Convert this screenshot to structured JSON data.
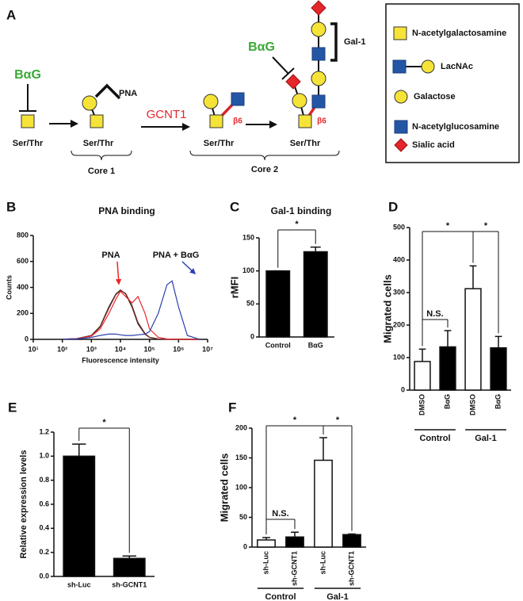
{
  "diagram": {
    "panel": "A",
    "inhibitor_1": "BαG",
    "inhibitor_2": "BαG",
    "pna": "PNA",
    "enzyme": "GCNT1",
    "linkage_1": "β6",
    "linkage_2": "β6",
    "site_1": "Ser/Thr",
    "site_2": "Ser/Thr",
    "site_3": "Ser/Thr",
    "site_4": "Ser/Thr",
    "core_1": "Core 1",
    "core_2": "Core 2",
    "gal1": "Gal-1",
    "legend": [
      "N-acetylgalactosamine",
      "LacNAc",
      "Galactose",
      "N-acetylglucosamine",
      "Sialic acid"
    ]
  },
  "chart_data": [
    {
      "panel": "B",
      "type": "line",
      "title": "PNA binding",
      "x_label": "Fluorescence intensity",
      "y_label": "Counts",
      "log_x": true,
      "x": [
        100,
        300,
        1000,
        2000,
        4000,
        7000,
        10000,
        15000,
        25000,
        40000,
        70000,
        100000,
        200000,
        400000,
        600000,
        1000000,
        2000000,
        5000000
      ],
      "xlim": [
        10,
        10000000
      ],
      "xticks": [
        {
          "value": 10,
          "label": "10¹"
        },
        {
          "value": 100,
          "label": "10²"
        },
        {
          "value": 1000,
          "label": "10³"
        },
        {
          "value": 10000,
          "label": "10⁴"
        },
        {
          "value": 100000,
          "label": "10⁵"
        },
        {
          "value": 1000000,
          "label": "10⁶"
        },
        {
          "value": 10000000,
          "label": "10⁷"
        }
      ],
      "ylim": [
        0,
        800
      ],
      "yticks": [
        0,
        200,
        400,
        600,
        800
      ],
      "series": [
        {
          "color": "#111111",
          "values": [
            2,
            5,
            30,
            100,
            250,
            350,
            380,
            350,
            250,
            120,
            40,
            15,
            3,
            1,
            0,
            0,
            0,
            0
          ]
        },
        {
          "color": "#7a2a2a",
          "values": [
            2,
            5,
            28,
            95,
            240,
            345,
            375,
            355,
            260,
            130,
            45,
            15,
            3,
            1,
            0,
            0,
            0,
            0
          ]
        },
        {
          "name": "PNA",
          "color": "#e8262a",
          "values": [
            2,
            5,
            25,
            80,
            200,
            310,
            370,
            330,
            280,
            330,
            200,
            80,
            15,
            3,
            1,
            0,
            0,
            0
          ]
        },
        {
          "name": "PNA + BαG",
          "color": "#2b3fb0",
          "values": [
            1,
            3,
            15,
            30,
            40,
            40,
            35,
            30,
            30,
            35,
            40,
            60,
            200,
            420,
            450,
            250,
            30,
            2
          ]
        }
      ]
    },
    {
      "panel": "C",
      "type": "bar",
      "title": "Gal-1 binding",
      "y_label": "rMFI",
      "categories": [
        "Control",
        "BαG"
      ],
      "values": [
        100,
        129
      ],
      "errors": [
        0,
        7
      ],
      "color": "#000000",
      "ylim": [
        0,
        150
      ],
      "yticks": [
        0,
        50,
        100,
        150
      ],
      "significance": [
        "*"
      ]
    },
    {
      "panel": "D",
      "type": "bar",
      "y_label": "Migrated cells",
      "categories": [
        "DMSO",
        "BαG",
        "DMSO",
        "BαG"
      ],
      "values": [
        88,
        133,
        312,
        130
      ],
      "errors": [
        38,
        50,
        70,
        35
      ],
      "colors": [
        "#ffffff",
        "#000000",
        "#ffffff",
        "#000000"
      ],
      "groups": [
        "Control",
        "Gal-1"
      ],
      "ylim": [
        0,
        500
      ],
      "yticks": [
        0,
        100,
        200,
        300,
        400,
        500
      ],
      "significance": [
        "*",
        "N.S.",
        "*"
      ]
    },
    {
      "panel": "E",
      "type": "bar",
      "y_label": "Relative expression levels",
      "categories": [
        "sh-Luc",
        "sh-GCNT1"
      ],
      "values": [
        1.0,
        0.15
      ],
      "errors": [
        0.1,
        0.02
      ],
      "color": "#000000",
      "ylim": [
        0,
        1.2
      ],
      "yticks": [
        {
          "value": 0,
          "label": "0.0"
        },
        0.2,
        0.4,
        0.6,
        0.8,
        {
          "value": 1,
          "label": "1.0"
        },
        1.2
      ],
      "significance": [
        "*"
      ]
    },
    {
      "panel": "F",
      "type": "bar",
      "y_label": "Migrated cells",
      "categories": [
        "sh-Luc",
        "sh-GCNT1",
        "sh-Luc",
        "sh-GCNT1"
      ],
      "values": [
        12,
        17,
        146,
        21
      ],
      "errors": [
        4,
        8,
        38,
        1
      ],
      "colors": [
        "#ffffff",
        "#000000",
        "#ffffff",
        "#000000"
      ],
      "groups": [
        "Control",
        "Gal-1"
      ],
      "ylim": [
        0,
        200
      ],
      "yticks": [
        0,
        50,
        100,
        150,
        200
      ],
      "significance": [
        "*",
        "N.S.",
        "*"
      ]
    }
  ]
}
